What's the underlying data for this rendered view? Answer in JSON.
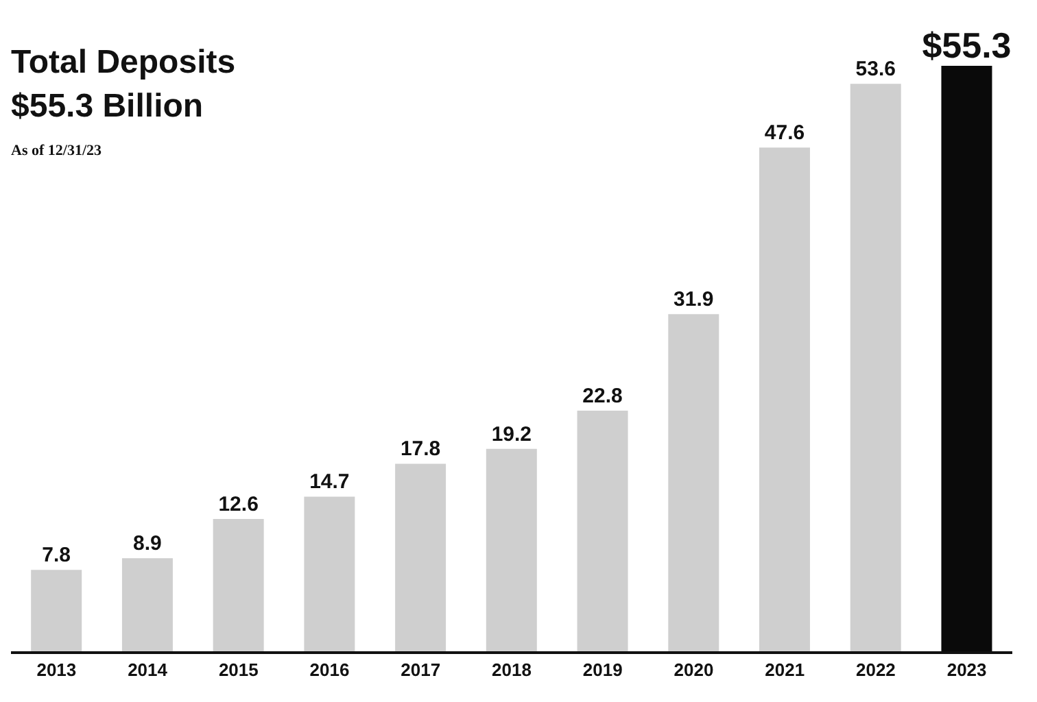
{
  "chart_data": {
    "type": "bar",
    "title": "Total Deposits",
    "subtitle": "$55.3 Billion",
    "annotations": [
      "As of 12/31/23"
    ],
    "categories": [
      "2013",
      "2014",
      "2015",
      "2016",
      "2017",
      "2018",
      "2019",
      "2020",
      "2021",
      "2022",
      "2023"
    ],
    "values": [
      7.8,
      8.9,
      12.6,
      14.7,
      17.8,
      19.2,
      22.8,
      31.9,
      47.6,
      53.6,
      55.3
    ],
    "value_labels": [
      "7.8",
      "8.9",
      "12.6",
      "14.7",
      "17.8",
      "19.2",
      "22.8",
      "31.9",
      "47.6",
      "53.6",
      "$55.3"
    ],
    "colors": [
      "#cfcfcf",
      "#cfcfcf",
      "#cfcfcf",
      "#cfcfcf",
      "#cfcfcf",
      "#cfcfcf",
      "#cfcfcf",
      "#cfcfcf",
      "#cfcfcf",
      "#cfcfcf",
      "#0a0a0a"
    ],
    "grid": false,
    "legend": false
  }
}
